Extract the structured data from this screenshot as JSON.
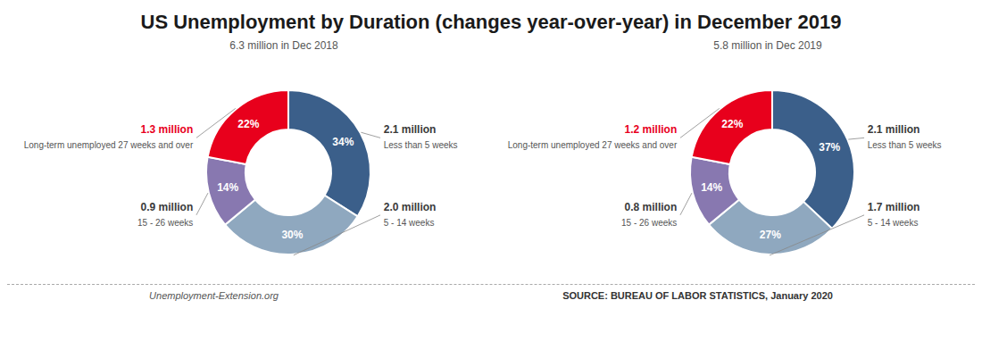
{
  "chart_data": [
    {
      "type": "pie",
      "title": "US Unemployment by Duration (changes year-over-year) in December 2019",
      "subtitle": "6.3 million in Dec 2018",
      "categories": [
        "Less than 5 weeks",
        "5 - 14 weeks",
        "15 - 26 weeks",
        "Long-term unemployed 27 weeks and over"
      ],
      "values": [
        34,
        30,
        14,
        22
      ],
      "value_labels": [
        "34%",
        "30%",
        "14%",
        "22%"
      ],
      "data_labels": true,
      "colors": [
        "#3b5f8a",
        "#8fa8bf",
        "#8878b0",
        "#e8001c"
      ],
      "annotations": [
        {
          "text": "2.1 million",
          "category": "Less than 5 weeks",
          "color": "#3a3a3a"
        },
        {
          "text": "2.0 million",
          "category": "5 - 14 weeks",
          "color": "#3a3a3a"
        },
        {
          "text": "0.9 million",
          "category": "15 - 26 weeks",
          "color": "#3a3a3a"
        },
        {
          "text": "1.3 million",
          "category": "Long-term unemployed 27 weeks and over",
          "color": "#e8001c"
        },
        {
          "text": "Unemployment-Extension.org"
        },
        {
          "text": "SOURCE: BUREAU OF LABOR STATISTICS, January 2020"
        }
      ]
    },
    {
      "type": "pie",
      "subtitle": "5.8 million in Dec 2019",
      "categories": [
        "Less than 5 weeks",
        "5 - 14 weeks",
        "15 - 26 weeks",
        "Long-term unemployed 27 weeks and over"
      ],
      "values": [
        37,
        27,
        14,
        22
      ],
      "value_labels": [
        "37%",
        "27%",
        "14%",
        "22%"
      ],
      "data_labels": true,
      "colors": [
        "#3b5f8a",
        "#8fa8bf",
        "#8878b0",
        "#e8001c"
      ],
      "annotations": [
        {
          "text": "2.1 million",
          "category": "Less than 5 weeks",
          "color": "#3a3a3a"
        },
        {
          "text": "1.7 million",
          "category": "5 - 14 weeks",
          "color": "#3a3a3a"
        },
        {
          "text": "0.8 million",
          "category": "15 - 26 weeks",
          "color": "#3a3a3a"
        },
        {
          "text": "1.2 million",
          "category": "Long-term unemployed 27 weeks and over",
          "color": "#e8001c"
        }
      ]
    }
  ]
}
